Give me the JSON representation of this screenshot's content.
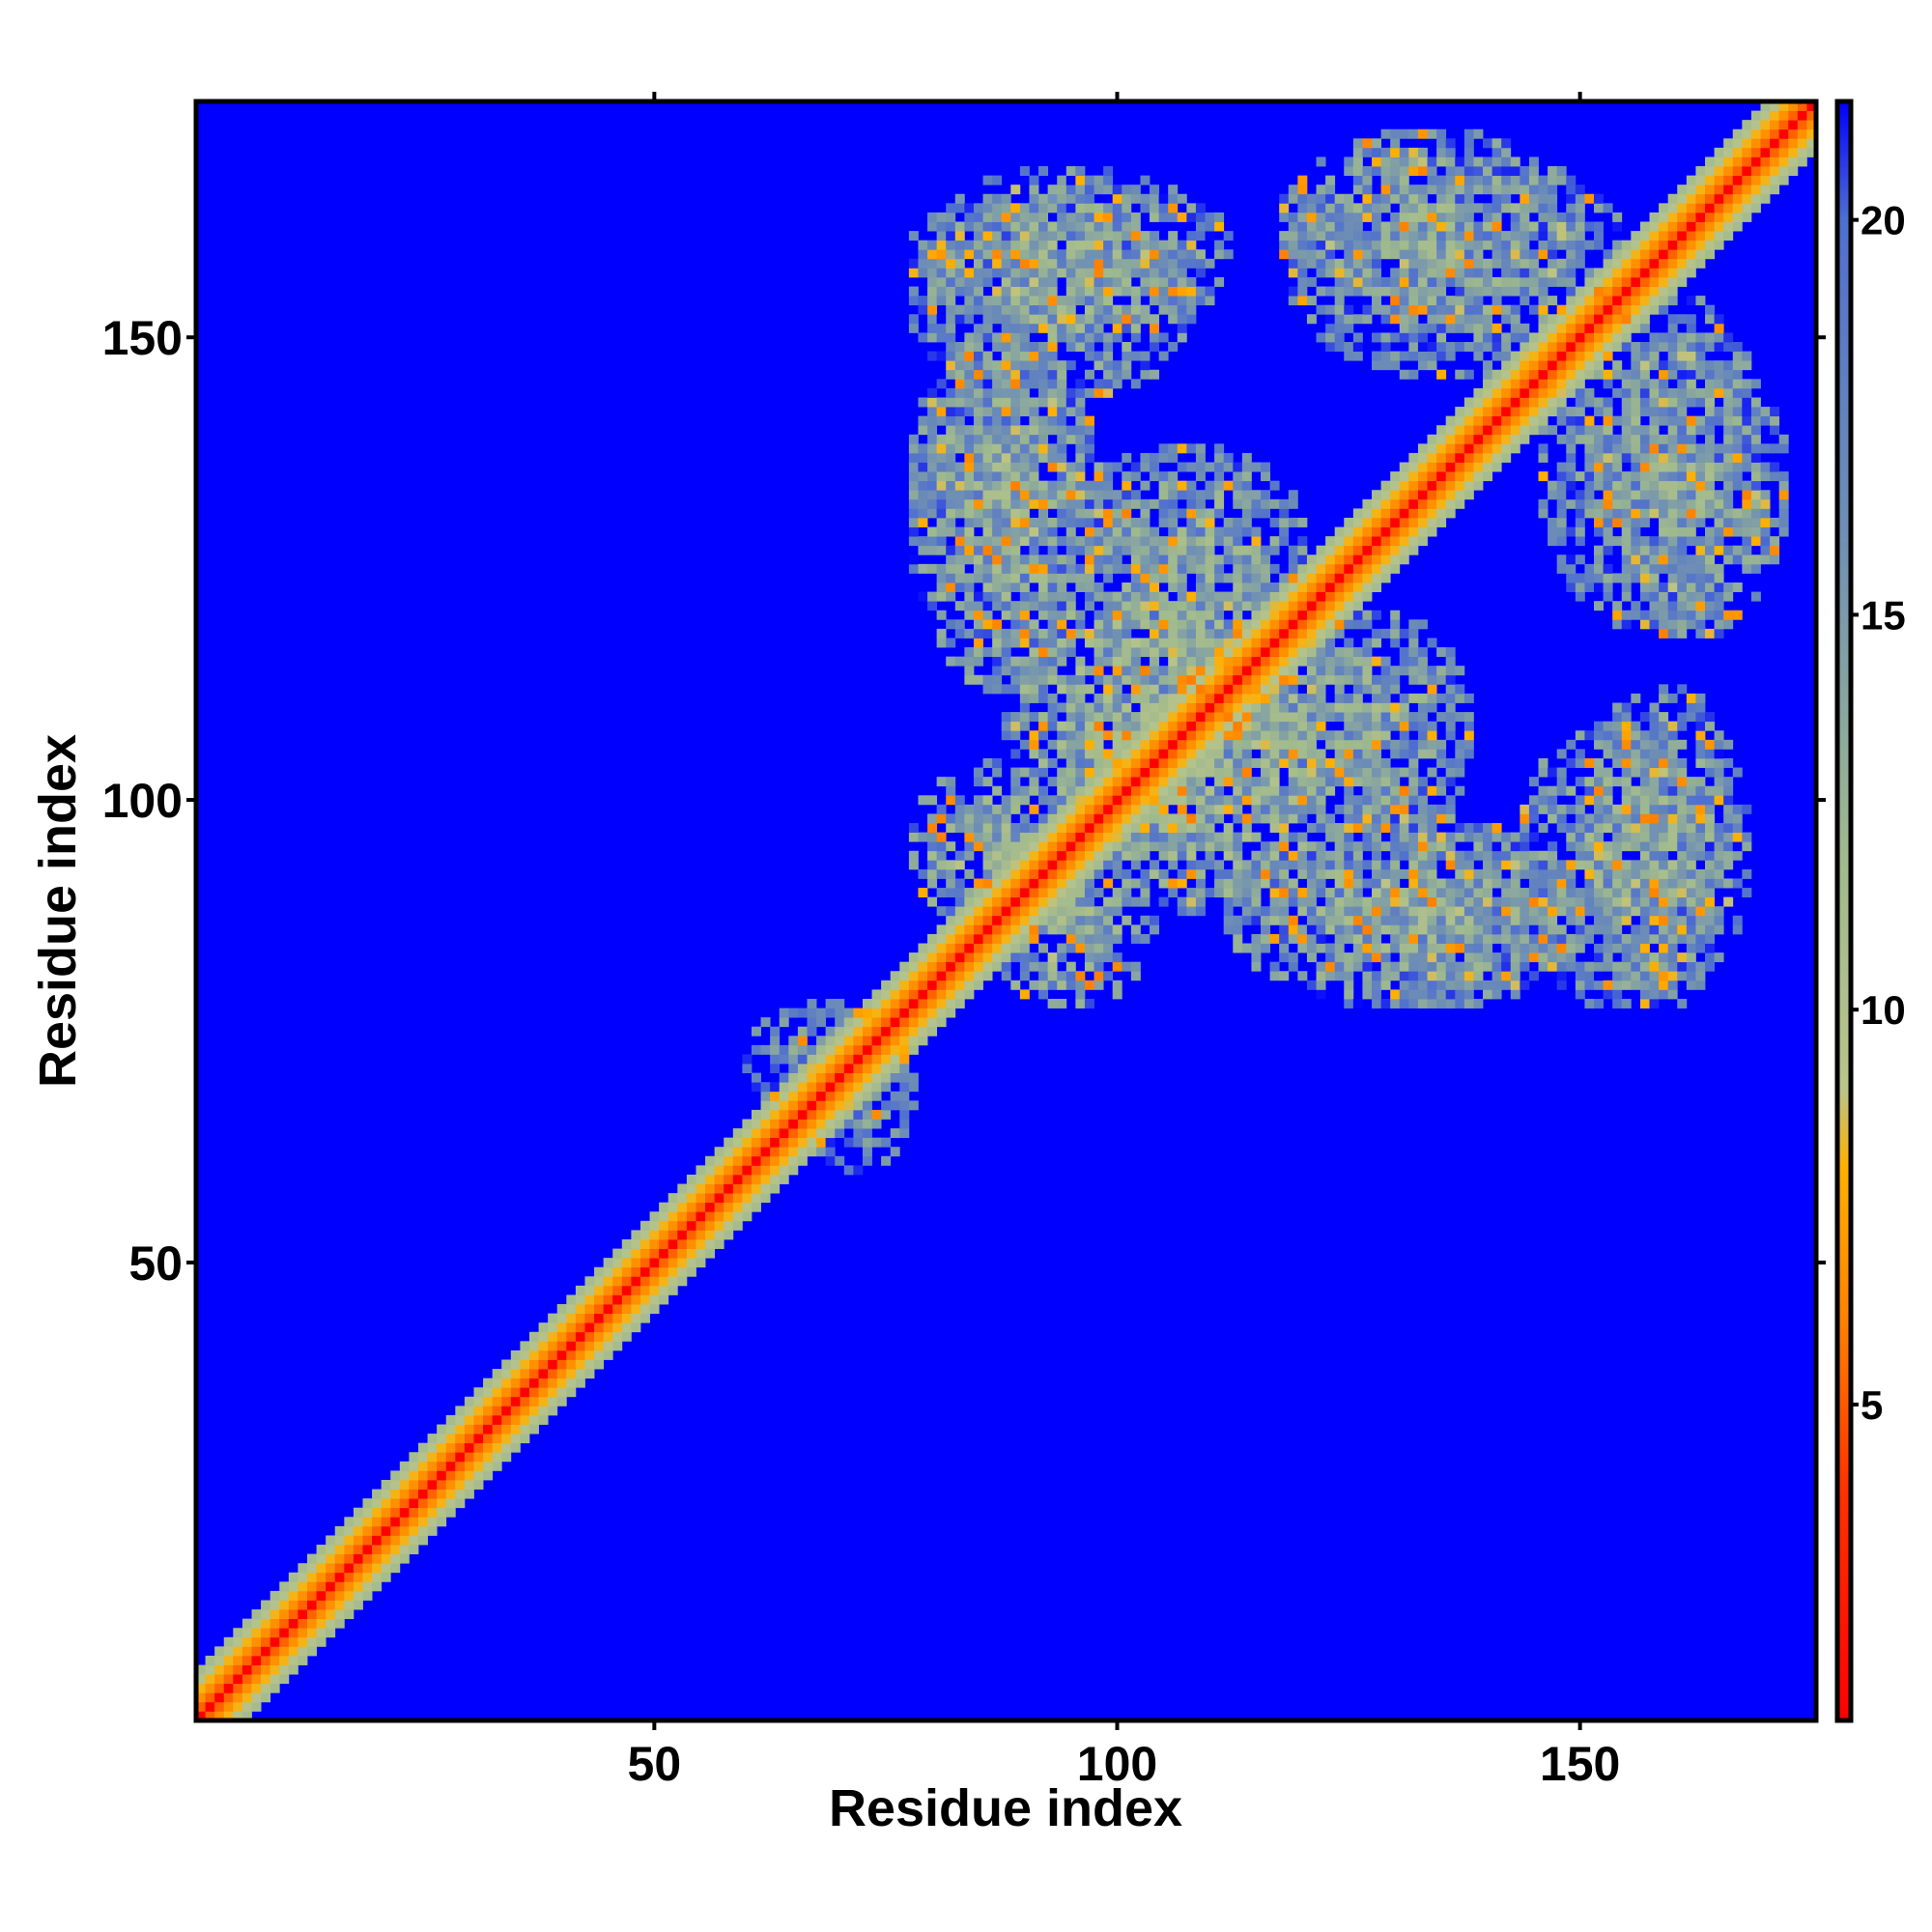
{
  "chart_data": {
    "type": "heatmap",
    "title": "",
    "xlabel": "Residue index",
    "ylabel": "Residue index",
    "n_residues": 175,
    "xlim": [
      1,
      175
    ],
    "ylim": [
      1,
      175
    ],
    "x_ticks": [
      {
        "value": 50,
        "label": "50"
      },
      {
        "value": 100,
        "label": "100"
      },
      {
        "value": 150,
        "label": "150"
      }
    ],
    "y_ticks": [
      {
        "value": 50,
        "label": "50"
      },
      {
        "value": 100,
        "label": "100"
      },
      {
        "value": 150,
        "label": "150"
      }
    ],
    "colorbar": {
      "range": [
        1,
        21.5
      ],
      "ticks": [
        {
          "value": 5,
          "label": "5"
        },
        {
          "value": 10,
          "label": "10"
        },
        {
          "value": 15,
          "label": "15"
        },
        {
          "value": 20,
          "label": "20"
        }
      ],
      "stops": [
        {
          "value": 1,
          "color": "#ff0000"
        },
        {
          "value": 4,
          "color": "#ff3300"
        },
        {
          "value": 6,
          "color": "#ff7f00"
        },
        {
          "value": 8,
          "color": "#ffb000"
        },
        {
          "value": 9,
          "color": "#b9c48a"
        },
        {
          "value": 12,
          "color": "#9fb98e"
        },
        {
          "value": 16,
          "color": "#6f8fb4"
        },
        {
          "value": 20,
          "color": "#4f6fd0"
        },
        {
          "value": 21.5,
          "color": "#0000ff"
        }
      ]
    },
    "background_value": 21.5,
    "background_color": "#0000ff",
    "diagonal_band": {
      "core_value": 3.8,
      "falloff_per_residue": 1.45,
      "halfwidth": 5
    },
    "contact_regions": [
      {
        "x_range": [
          78,
          108
        ],
        "y_range": [
          143,
          166
        ],
        "mean_value": 14.5
      },
      {
        "x_range": [
          78,
          96
        ],
        "y_range": [
          120,
          150
        ],
        "mean_value": 14.5
      },
      {
        "x_range": [
          88,
          122
        ],
        "y_range": [
          95,
          128
        ],
        "mean_value": 13.0
      },
      {
        "x_range": [
          118,
          150
        ],
        "y_range": [
          152,
          172
        ],
        "mean_value": 14.5
      },
      {
        "x_range": [
          146,
          170
        ],
        "y_range": [
          118,
          155
        ],
        "mean_value": 15.0
      },
      {
        "x_range": [
          112,
          150
        ],
        "y_range": [
          78,
          98
        ],
        "mean_value": 14.0
      },
      {
        "x_range": [
          150,
          168
        ],
        "y_range": [
          78,
          112
        ],
        "mean_value": 14.5
      },
      {
        "x_range": [
          118,
          138
        ],
        "y_range": [
          95,
          120
        ],
        "mean_value": 14.5
      },
      {
        "x_range": [
          78,
          94
        ],
        "y_range": [
          86,
          104
        ],
        "mean_value": 13.5
      },
      {
        "x_range": [
          60,
          76
        ],
        "y_range": [
          66,
          78
        ],
        "mean_value": 16.0
      }
    ]
  }
}
